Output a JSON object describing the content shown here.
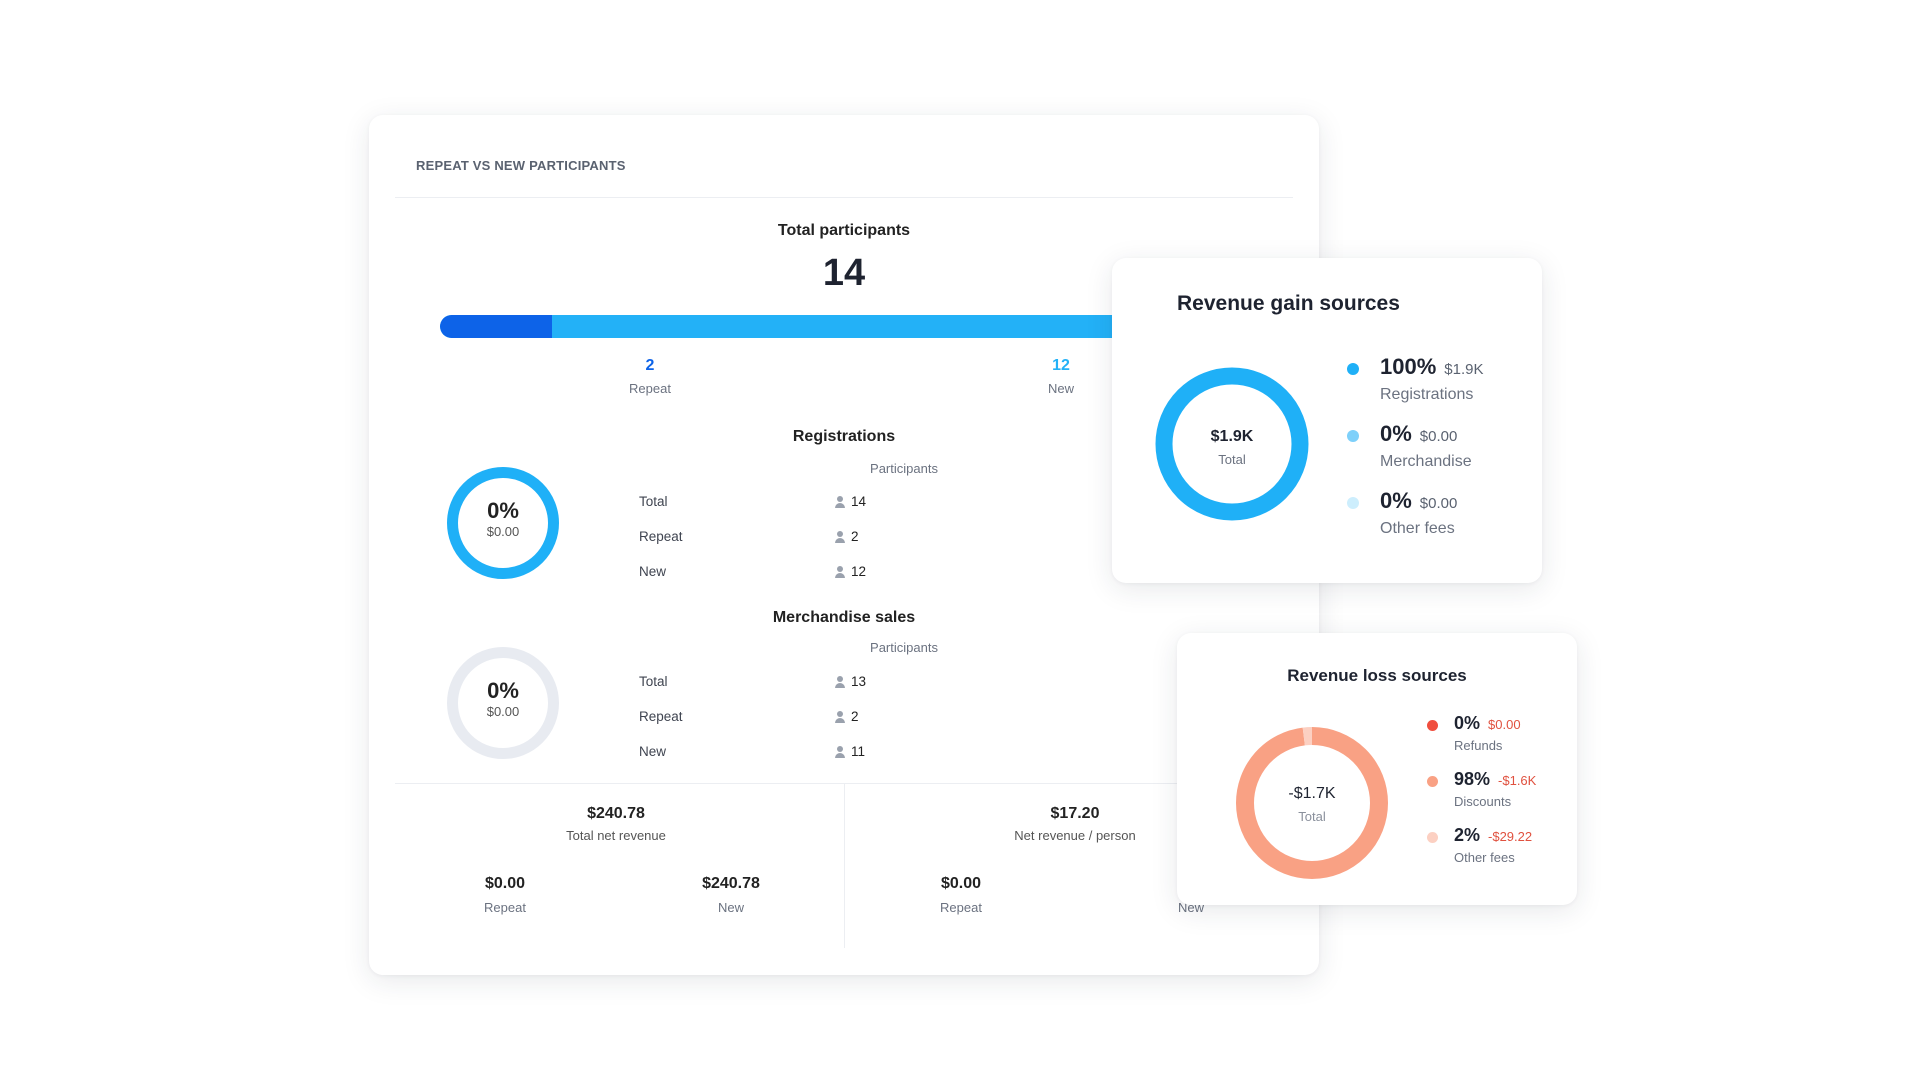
{
  "main": {
    "header": "REPEAT VS NEW PARTICIPANTS",
    "total_label": "Total participants",
    "total_value": "14",
    "split": {
      "repeat_count": "2",
      "repeat_label": "Repeat",
      "repeat_fraction": 0.143,
      "new_count": "12",
      "new_label": "New"
    },
    "registrations": {
      "title": "Registrations",
      "column": "Participants",
      "ring_pct": "0%",
      "ring_amount": "$0.00",
      "rows": [
        {
          "label": "Total",
          "value": "14"
        },
        {
          "label": "Repeat",
          "value": "2"
        },
        {
          "label": "New",
          "value": "12"
        }
      ]
    },
    "merchandise": {
      "title": "Merchandise sales",
      "column": "Participants",
      "ring_pct": "0%",
      "ring_amount": "$0.00",
      "rows": [
        {
          "label": "Total",
          "value": "13"
        },
        {
          "label": "Repeat",
          "value": "2"
        },
        {
          "label": "New",
          "value": "11"
        }
      ]
    },
    "bottom": {
      "left": {
        "value": "$240.78",
        "label": "Total net revenue",
        "repeat_value": "$0.00",
        "repeat_label": "Repeat",
        "new_value": "$240.78",
        "new_label": "New"
      },
      "right": {
        "value": "$17.20",
        "label": "Net revenue / person",
        "repeat_value": "$0.00",
        "repeat_label": "Repeat",
        "new_value": "$",
        "new_label": "New"
      }
    }
  },
  "gain": {
    "title": "Revenue gain sources",
    "total_value": "$1.9K",
    "total_label": "Total",
    "items": [
      {
        "pct": "100%",
        "amount": "$1.9K",
        "name": "Registrations",
        "color": "#1fb0f7",
        "fraction": 1.0
      },
      {
        "pct": "0%",
        "amount": "$0.00",
        "name": "Merchandise",
        "color": "#7ed0fa",
        "fraction": 0.0
      },
      {
        "pct": "0%",
        "amount": "$0.00",
        "name": "Other fees",
        "color": "#cdeefd",
        "fraction": 0.0
      }
    ]
  },
  "loss": {
    "title": "Revenue loss sources",
    "total_value": "-$1.7K",
    "total_label": "Total",
    "items": [
      {
        "pct": "0%",
        "amount": "$0.00",
        "name": "Refunds",
        "color": "#f04e3e",
        "fraction": 0.0
      },
      {
        "pct": "98%",
        "amount": "-$1.6K",
        "name": "Discounts",
        "color": "#f9a184",
        "fraction": 0.98
      },
      {
        "pct": "2%",
        "amount": "-$29.22",
        "name": "Other fees",
        "color": "#fcd0c2",
        "fraction": 0.02
      }
    ]
  },
  "colors": {
    "repeat_blue": "#0d63e8",
    "new_blue": "#23b1f7",
    "ring_grey": "#e8ebf1",
    "loss_amount": "#e0513f"
  }
}
